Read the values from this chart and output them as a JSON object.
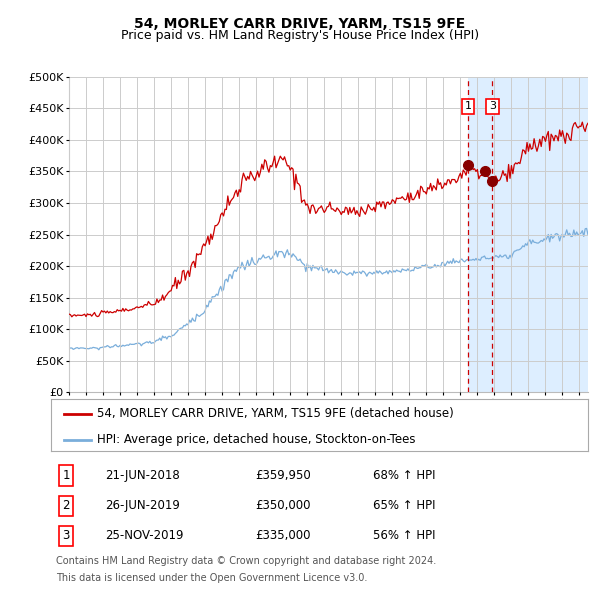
{
  "title": "54, MORLEY CARR DRIVE, YARM, TS15 9FE",
  "subtitle": "Price paid vs. HM Land Registry's House Price Index (HPI)",
  "legend_line1": "54, MORLEY CARR DRIVE, YARM, TS15 9FE (detached house)",
  "legend_line2": "HPI: Average price, detached house, Stockton-on-Tees",
  "footer1": "Contains HM Land Registry data © Crown copyright and database right 2024.",
  "footer2": "This data is licensed under the Open Government Licence v3.0.",
  "transactions": [
    {
      "num": "1",
      "date": "21-JUN-2018",
      "price": "£359,950",
      "hpi": "68% ↑ HPI"
    },
    {
      "num": "2",
      "date": "26-JUN-2019",
      "price": "£350,000",
      "hpi": "65% ↑ HPI"
    },
    {
      "num": "3",
      "date": "25-NOV-2019",
      "price": "£335,000",
      "hpi": "56% ↑ HPI"
    }
  ],
  "t1_year": 2018.458,
  "t2_year": 2019.458,
  "t3_year": 2019.875,
  "t1_price": 359950,
  "t2_price": 350000,
  "t3_price": 335000,
  "ylim": [
    0,
    500000
  ],
  "yticks": [
    0,
    50000,
    100000,
    150000,
    200000,
    250000,
    300000,
    350000,
    400000,
    450000,
    500000
  ],
  "red_line_color": "#cc0000",
  "blue_line_color": "#7aaedb",
  "dot_color": "#880000",
  "vline_color": "#cc0000",
  "grid_color": "#cccccc",
  "bg_color": "#ffffff",
  "highlight_bg": "#ddeeff",
  "title_fontsize": 10,
  "subtitle_fontsize": 9,
  "axis_fontsize": 8,
  "legend_fontsize": 8.5,
  "table_fontsize": 8.5,
  "footer_fontsize": 7
}
